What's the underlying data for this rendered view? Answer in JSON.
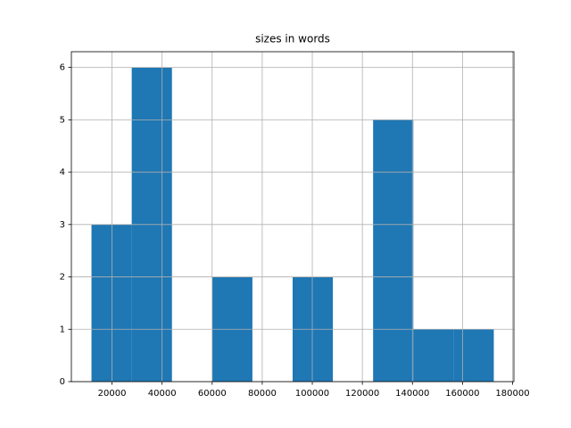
{
  "chart_data": {
    "type": "histogram",
    "title": "sizes in words",
    "bins": [
      11800,
      27870,
      43940,
      60010,
      76080,
      92150,
      108220,
      124290,
      140360,
      156430,
      172500
    ],
    "values": [
      3,
      6,
      0,
      2,
      0,
      2,
      0,
      5,
      1,
      1
    ],
    "color": "#1f77b4",
    "xlim": [
      3765,
      180535
    ],
    "xticks": [
      20000,
      40000,
      60000,
      80000,
      100000,
      120000,
      140000,
      160000,
      180000
    ],
    "ylim": [
      0,
      6.3
    ],
    "yticks": [
      0,
      1,
      2,
      3,
      4,
      5,
      6
    ],
    "grid": true
  }
}
